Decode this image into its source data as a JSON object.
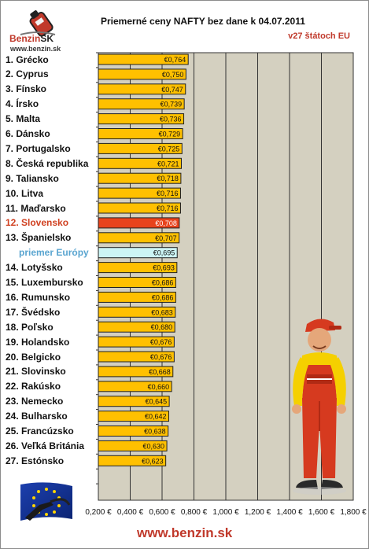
{
  "header": {
    "logo_name": "Benzin",
    "logo_suffix": "SK",
    "logo_url": "www.benzin.sk",
    "title": "Priemerné ceny NAFTY bez dane k 04.07.2011",
    "subtitle": "v27 štátoch EU"
  },
  "footer": {
    "url": "www.benzin.sk"
  },
  "colors": {
    "bar": "#ffc000",
    "bar_highlight": "#e8431c",
    "bar_average": "#ccf5f5",
    "plot_background": "#d4d0c0",
    "highlight_text": "#d04020",
    "average_text": "#5aa5d0"
  },
  "icons": [
    "benzin-logo-icon",
    "eu-flag-fuel-nozzle-icon",
    "gas-station-attendant-mascot"
  ],
  "chart_data": {
    "type": "bar",
    "orientation": "horizontal",
    "title": "Priemerné ceny NAFTY bez dane k 04.07.2011",
    "subtitle": "v27 štátoch EU",
    "categories": [
      "1. Grécko",
      "2. Cyprus",
      "3. Fínsko",
      "4. Írsko",
      "5. Malta",
      "6. Dánsko",
      "7. Portugalsko",
      "8. Česká republika",
      "9. Taliansko",
      "10. Litva",
      "11. Maďarsko",
      "12. Slovensko",
      "13. Španielsko",
      "priemer Európy",
      "14. Lotyšsko",
      "15. Luxembursko",
      "16. Rumunsko",
      "17. Švédsko",
      "18. Poľsko",
      "19. Holandsko",
      "20. Belgicko",
      "21. Slovinsko",
      "22. Rakúsko",
      "23. Nemecko",
      "24. Bulharsko",
      "25. Francúzsko",
      "26. Veľká Británia",
      "27. Estónsko"
    ],
    "values": [
      0.764,
      0.75,
      0.747,
      0.739,
      0.736,
      0.729,
      0.725,
      0.721,
      0.718,
      0.716,
      0.716,
      0.708,
      0.707,
      0.695,
      0.693,
      0.686,
      0.686,
      0.683,
      0.68,
      0.676,
      0.676,
      0.668,
      0.66,
      0.645,
      0.642,
      0.638,
      0.63,
      0.623
    ],
    "value_labels": [
      "€0,764",
      "€0,750",
      "€0,747",
      "€0,739",
      "€0,736",
      "€0,729",
      "€0,725",
      "€0,721",
      "€0,718",
      "€0,716",
      "€0,716",
      "€0,708",
      "€0,707",
      "€0,695",
      "€0,693",
      "€0,686",
      "€0,686",
      "€0,683",
      "€0,680",
      "€0,676",
      "€0,676",
      "€0,668",
      "€0,660",
      "€0,645",
      "€0,642",
      "€0,638",
      "€0,630",
      "€0,623"
    ],
    "highlight_index": 11,
    "average_index": 13,
    "xlim": [
      0.2,
      1.8
    ],
    "xticks": [
      0.2,
      0.4,
      0.6,
      0.8,
      1.0,
      1.2,
      1.4,
      1.6,
      1.8
    ],
    "xtick_labels": [
      "0,200 €",
      "0,400 €",
      "0,600 €",
      "0,800 €",
      "1,000 €",
      "1,200 €",
      "1,400 €",
      "1,600 €",
      "1,800 €"
    ],
    "grid": true,
    "legend": "none"
  }
}
